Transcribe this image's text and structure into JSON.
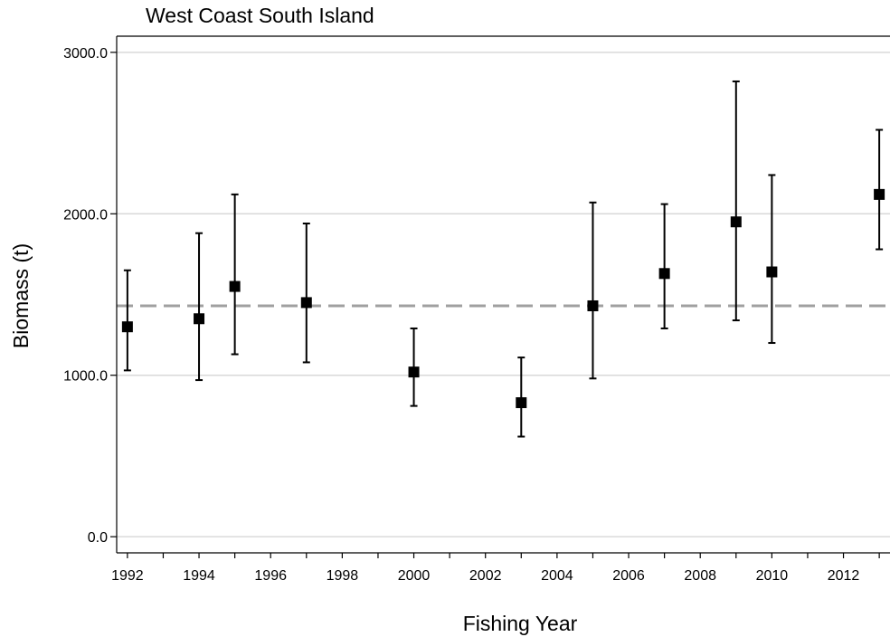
{
  "chart_data": {
    "type": "scatter",
    "title": "West Coast South Island",
    "xlabel": "Fishing Year",
    "ylabel": "Biomass (t)",
    "x_ticks": [
      "1992",
      "1994",
      "1996",
      "1998",
      "2000",
      "2002",
      "2004",
      "2006",
      "2008",
      "2010",
      "2012"
    ],
    "y_ticks": [
      "0.0",
      "1000.0",
      "2000.0",
      "3000.0"
    ],
    "xlim": [
      1991.7,
      2013.3
    ],
    "ylim": [
      -100,
      3100
    ],
    "grid": true,
    "reference_line": {
      "y": 1430,
      "style": "dashed",
      "color": "#a0a0a0"
    },
    "points": [
      {
        "x": 1992,
        "y": 1300,
        "lower": 1030,
        "upper": 1650
      },
      {
        "x": 1994,
        "y": 1350,
        "lower": 970,
        "upper": 1880
      },
      {
        "x": 1995,
        "y": 1550,
        "lower": 1130,
        "upper": 2120
      },
      {
        "x": 1997,
        "y": 1450,
        "lower": 1080,
        "upper": 1940
      },
      {
        "x": 2000,
        "y": 1020,
        "lower": 810,
        "upper": 1290
      },
      {
        "x": 2003,
        "y": 830,
        "lower": 620,
        "upper": 1110
      },
      {
        "x": 2005,
        "y": 1430,
        "lower": 980,
        "upper": 2070
      },
      {
        "x": 2007,
        "y": 1630,
        "lower": 1290,
        "upper": 2060
      },
      {
        "x": 2009,
        "y": 1950,
        "lower": 1340,
        "upper": 2820
      },
      {
        "x": 2010,
        "y": 1640,
        "lower": 1200,
        "upper": 2240
      },
      {
        "x": 2013,
        "y": 2120,
        "lower": 1780,
        "upper": 2520
      }
    ],
    "colors": {
      "points": "#000000",
      "grid": "#d9d9d9",
      "reference": "#a0a0a0",
      "axis": "#000000"
    }
  }
}
